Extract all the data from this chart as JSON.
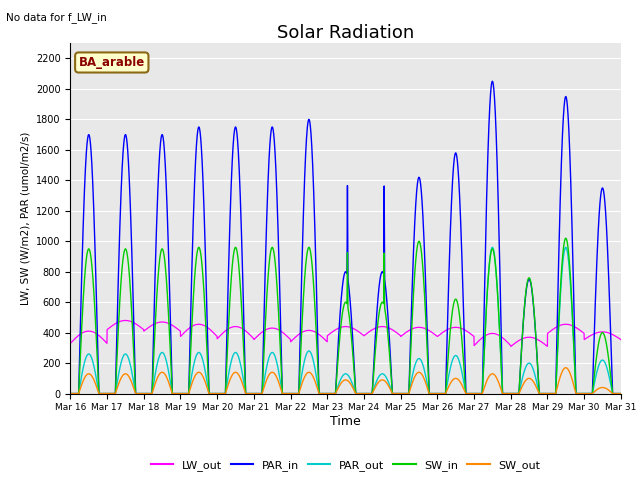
{
  "title": "Solar Radiation",
  "top_left_text": "No data for f_LW_in",
  "ylabel": "LW, SW (W/m2), PAR (umol/m2/s)",
  "xlabel": "Time",
  "box_label": "BA_arable",
  "ylim": [
    0,
    2300
  ],
  "yticks": [
    0,
    200,
    400,
    600,
    800,
    1000,
    1200,
    1400,
    1600,
    1800,
    2000,
    2200
  ],
  "background_color": "#e8e8e8",
  "series_colors": {
    "LW_out": "#ff00ff",
    "PAR_in": "#0000ff",
    "PAR_out": "#00cccc",
    "SW_in": "#00cc00",
    "SW_out": "#ff8800"
  },
  "days": 15,
  "start_day": 16
}
